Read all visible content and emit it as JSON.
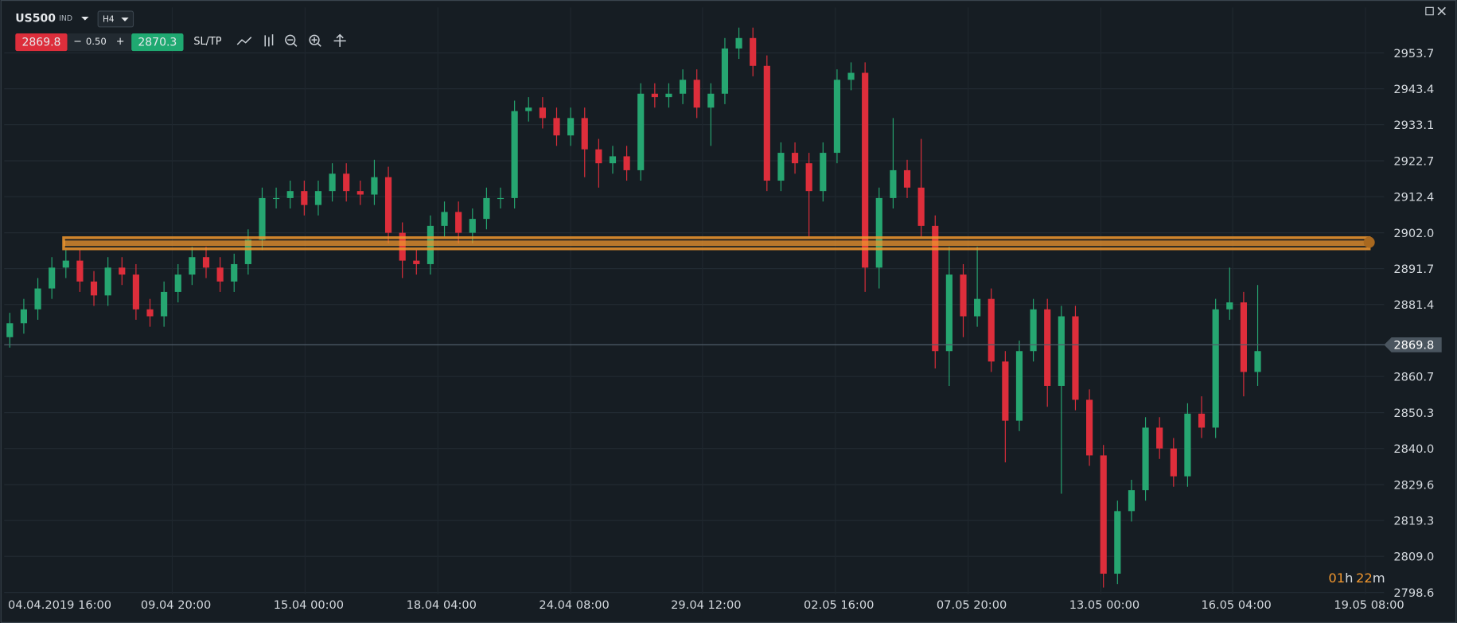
{
  "header": {
    "symbol": "US500",
    "market": "IND",
    "timeframe": "H4",
    "bid": "2869.8",
    "spread_minus": "−",
    "spread": "0.50",
    "spread_plus": "+",
    "ask": "2870.3",
    "sl_tp": "SL/TP"
  },
  "chart_data": {
    "type": "candlestick",
    "open": [
      2872,
      2876,
      2880,
      2886,
      2892,
      2894,
      2888,
      2884,
      2892,
      2890,
      2880,
      2878,
      2885,
      2890,
      2895,
      2892,
      2888,
      2893,
      2900,
      2912,
      2912,
      2914,
      2910,
      2914,
      2919,
      2914,
      2913,
      2918,
      2902,
      2894,
      2893,
      2904,
      2908,
      2902,
      2906,
      2912,
      2912,
      2937,
      2938,
      2935,
      2930,
      2935,
      2926,
      2922,
      2924,
      2920,
      2942,
      2941,
      2942,
      2946,
      2938,
      2942,
      2955,
      2958,
      2950,
      2917,
      2925,
      2922,
      2914,
      2925,
      2946,
      2948,
      2892,
      2912,
      2920,
      2915,
      2904,
      2868,
      2890,
      2878,
      2883,
      2865,
      2848,
      2868,
      2880,
      2858,
      2878,
      2854,
      2838,
      2804,
      2822,
      2828,
      2846,
      2840,
      2832,
      2850,
      2846,
      2880,
      2882,
      2862
    ],
    "high": [
      2879,
      2883,
      2889,
      2895,
      2897,
      2897,
      2891,
      2895,
      2895,
      2893,
      2883,
      2888,
      2893,
      2898,
      2898,
      2895,
      2896,
      2903,
      2915,
      2915,
      2917,
      2917,
      2917,
      2922,
      2922,
      2917,
      2923,
      2921,
      2905,
      2897,
      2907,
      2911,
      2911,
      2909,
      2915,
      2915,
      2940,
      2941,
      2941,
      2938,
      2938,
      2938,
      2929,
      2927,
      2927,
      2945,
      2945,
      2945,
      2949,
      2949,
      2945,
      2958,
      2961,
      2961,
      2953,
      2928,
      2928,
      2925,
      2928,
      2949,
      2951,
      2951,
      2915,
      2935,
      2923,
      2929,
      2907,
      2898,
      2893,
      2898,
      2886,
      2868,
      2871,
      2883,
      2883,
      2881,
      2881,
      2857,
      2841,
      2825,
      2831,
      2849,
      2849,
      2843,
      2853,
      2855,
      2883,
      2892,
      2885,
      2887
    ],
    "low": [
      2869,
      2873,
      2877,
      2883,
      2889,
      2885,
      2881,
      2881,
      2887,
      2877,
      2875,
      2875,
      2882,
      2887,
      2889,
      2885,
      2885,
      2890,
      2897,
      2909,
      2909,
      2907,
      2907,
      2911,
      2911,
      2910,
      2910,
      2899,
      2889,
      2890,
      2890,
      2901,
      2899,
      2899,
      2903,
      2909,
      2909,
      2934,
      2932,
      2927,
      2927,
      2918,
      2915,
      2919,
      2917,
      2917,
      2938,
      2938,
      2939,
      2935,
      2927,
      2939,
      2952,
      2947,
      2914,
      2914,
      2919,
      2901,
      2911,
      2922,
      2943,
      2885,
      2886,
      2909,
      2912,
      2901,
      2863,
      2858,
      2872,
      2875,
      2862,
      2836,
      2845,
      2865,
      2852,
      2827,
      2851,
      2835,
      2800,
      2801,
      2819,
      2825,
      2837,
      2829,
      2829,
      2843,
      2843,
      2877,
      2855,
      2858
    ],
    "close": [
      2876,
      2880,
      2886,
      2892,
      2894,
      2888,
      2884,
      2892,
      2890,
      2880,
      2878,
      2885,
      2890,
      2895,
      2892,
      2888,
      2893,
      2900,
      2912,
      2912,
      2914,
      2910,
      2914,
      2919,
      2914,
      2913,
      2918,
      2902,
      2894,
      2893,
      2904,
      2908,
      2902,
      2906,
      2912,
      2912,
      2937,
      2938,
      2935,
      2930,
      2935,
      2926,
      2922,
      2924,
      2920,
      2942,
      2941,
      2942,
      2946,
      2938,
      2942,
      2955,
      2958,
      2950,
      2917,
      2925,
      2922,
      2914,
      2925,
      2946,
      2948,
      2892,
      2912,
      2920,
      2915,
      2904,
      2868,
      2890,
      2878,
      2883,
      2865,
      2848,
      2868,
      2880,
      2858,
      2878,
      2854,
      2838,
      2804,
      2822,
      2828,
      2846,
      2840,
      2832,
      2850,
      2846,
      2880,
      2882,
      2862,
      2868
    ],
    "ylim": [
      2798.1,
      2966.8
    ],
    "yticks": [
      2953.7,
      2943.4,
      2933.1,
      2922.7,
      2912.4,
      {
        "value": 2902,
        "label": "2902.0"
      },
      2891.7,
      2881.4,
      2860.7,
      2850.3,
      {
        "value": 2840,
        "label": "2840.0"
      },
      2829.6,
      2819.3,
      {
        "value": 2809,
        "label": "2809.0"
      },
      2798.6
    ],
    "x_labels": [
      "04.04.2019 16:00",
      "09.04 20:00",
      "15.04 00:00",
      "18.04 04:00",
      "24.04 08:00",
      "29.04 12:00",
      "02.05 16:00",
      "07.05 20:00",
      "13.05 00:00",
      "16.05 04:00",
      "19.05 08:00"
    ],
    "level": 2899,
    "current_price": 2869.8,
    "countdown": [
      "01",
      "h",
      "22",
      "m"
    ],
    "up_color": "#26a671",
    "down_color": "#dd2e3b",
    "level_color": "#f0962e"
  }
}
